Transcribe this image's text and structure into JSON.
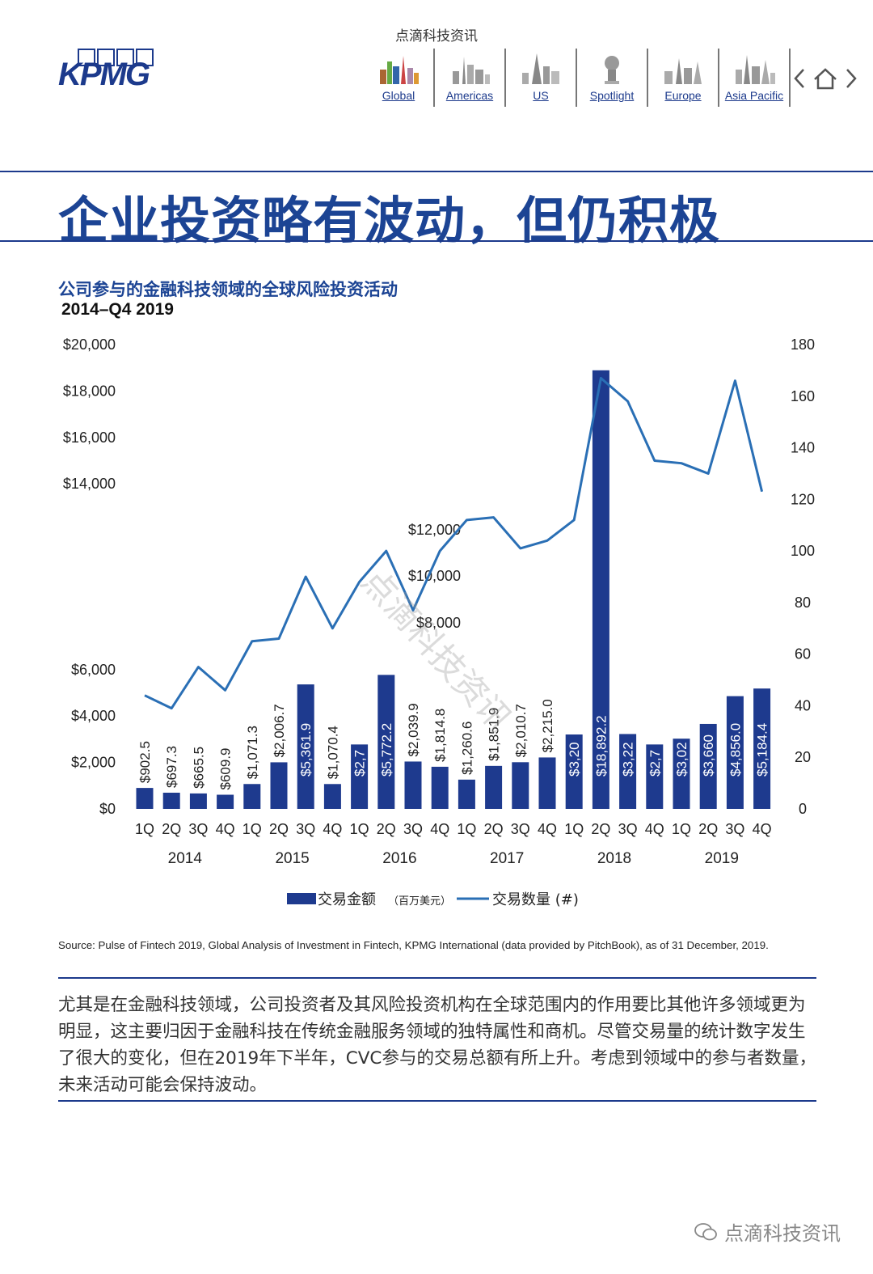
{
  "header": {
    "watermark_top": "点滴科技资讯",
    "logo_text": "KPMG",
    "nav": [
      {
        "label": "Global",
        "icon": "global-skyline-icon"
      },
      {
        "label": "Americas",
        "icon": "americas-skyline-icon"
      },
      {
        "label": "US",
        "icon": "us-skyline-icon"
      },
      {
        "label": "Spotlight",
        "icon": "spotlight-icon"
      },
      {
        "label": "Europe",
        "icon": "europe-skyline-icon"
      },
      {
        "label": "Asia Pacific",
        "icon": "asia-pacific-skyline-icon"
      }
    ],
    "controls": {
      "prev": "‹",
      "home": "home-icon",
      "next": "›"
    }
  },
  "headline": "企业投资略有波动，但仍积极",
  "chart_title": "公司参与的金融科技领域的全球风险投资活动",
  "chart_subtitle": "2014–Q4 2019",
  "chart_data": {
    "type": "bar+line",
    "categories": [
      "1Q",
      "2Q",
      "3Q",
      "4Q",
      "1Q",
      "2Q",
      "3Q",
      "4Q",
      "1Q",
      "2Q",
      "3Q",
      "4Q",
      "1Q",
      "2Q",
      "3Q",
      "4Q",
      "1Q",
      "2Q",
      "3Q",
      "4Q",
      "1Q",
      "2Q",
      "3Q",
      "4Q"
    ],
    "years": [
      "2014",
      "2015",
      "2016",
      "2017",
      "2018",
      "2019"
    ],
    "series": [
      {
        "name": "交易金额",
        "unit_note": "（百万美元）",
        "axis": "left",
        "values": [
          902.5,
          697.3,
          665.5,
          609.9,
          1071.3,
          2006.7,
          5361.9,
          1070.4,
          2775,
          5772.2,
          2039.9,
          1814.8,
          1260.6,
          1851.9,
          2010.7,
          2215.0,
          3205,
          18892.2,
          3225,
          2775,
          3025,
          3660,
          4856.0,
          5184.4
        ],
        "labels": [
          "$902.5",
          "$697.3",
          "$665.5",
          "$609.9",
          "$1,071.3",
          "$2,006.7",
          "$5,361.9",
          "$1,070.4",
          "$2,7",
          "$5,772.2",
          "$2,039.9",
          "$1,814.8",
          "$1,260.6",
          "$1,851.9",
          "$2,010.7",
          "$2,215.0",
          "$3,20",
          "$18,892.2",
          "$3,22",
          "$2,7",
          "$3,02",
          "$3,660",
          "$4,856.0",
          "$5,184.4"
        ]
      },
      {
        "name": "交易数量 (#)",
        "axis": "right",
        "values": [
          44,
          39,
          55,
          46,
          65,
          66,
          90,
          70,
          88,
          100,
          77,
          100,
          112,
          113,
          101,
          104,
          112,
          167,
          158,
          135,
          134,
          130,
          166,
          123
        ]
      }
    ],
    "left_ticks": [
      "$0",
      "$2,000",
      "$4,000",
      "$6,000",
      "$8,000",
      "$10,000",
      "$12,000",
      "$14,000",
      "$16,000",
      "$18,000",
      "$20,000"
    ],
    "right_ticks": [
      "0",
      "20",
      "40",
      "60",
      "80",
      "100",
      "120",
      "140",
      "160",
      "180"
    ],
    "ylim_left": [
      0,
      20000
    ],
    "ylim_right": [
      0,
      180
    ],
    "legend": "bottom-center",
    "colors": {
      "bar": "#1e3a8e",
      "line": "#2a6fb5"
    }
  },
  "chart_watermark": "点滴科技资讯",
  "source": "Source: Pulse of Fintech 2019, Global Analysis of Investment in Fintech, KPMG International (data provided by PitchBook), as of 31 December, 2019.",
  "body_text": "尤其是在金融科技领域，公司投资者及其风险投资机构在全球范围内的作用要比其他许多领域更为明显，这主要归因于金融科技在传统金融服务领域的独特属性和商机。尽管交易量的统计数字发生了很大的变化，但在2019年下半年，CVC参与的交易总额有所上升。考虑到领域中的参与者数量，未来活动可能会保持波动。",
  "footer_watermark": "点滴科技资讯"
}
